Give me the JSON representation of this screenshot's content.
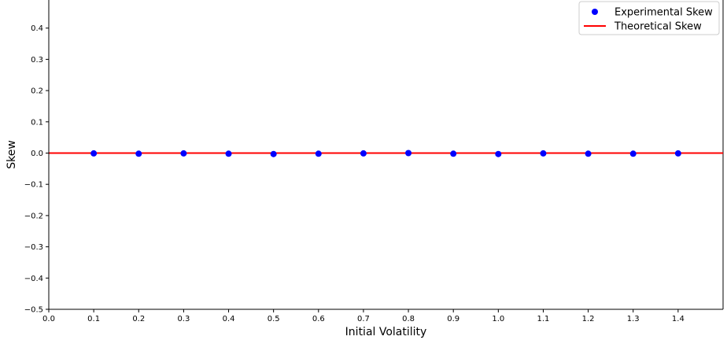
{
  "chart_data": {
    "type": "scatter",
    "title": "",
    "xlabel": "Initial Volatility",
    "ylabel": "Skew",
    "xlim": [
      0.0,
      1.5
    ],
    "ylim": [
      -0.5,
      0.5
    ],
    "xticks": [
      "0.0",
      "0.1",
      "0.2",
      "0.3",
      "0.4",
      "0.5",
      "0.6",
      "0.7",
      "0.8",
      "0.9",
      "1.0",
      "1.1",
      "1.2",
      "1.3",
      "1.4"
    ],
    "yticks": [
      "−0.5",
      "−0.4",
      "−0.3",
      "−0.2",
      "−0.1",
      "0.0",
      "0.1",
      "0.2",
      "0.3",
      "0.4"
    ],
    "ytick_values": [
      -0.5,
      -0.4,
      -0.3,
      -0.2,
      -0.1,
      0.0,
      0.1,
      0.2,
      0.3,
      0.4
    ],
    "grid": false,
    "legend_position": "top-right",
    "series": [
      {
        "name": "Experimental Skew",
        "kind": "scatter",
        "color": "#0000ff",
        "x": [
          0.1,
          0.2,
          0.3,
          0.4,
          0.5,
          0.6,
          0.7,
          0.8,
          0.9,
          1.0,
          1.1,
          1.2,
          1.3,
          1.4
        ],
        "y": [
          -0.001,
          -0.002,
          -0.001,
          -0.002,
          -0.003,
          -0.002,
          -0.001,
          0.0,
          -0.002,
          -0.003,
          -0.001,
          -0.002,
          -0.002,
          -0.001
        ]
      },
      {
        "name": "Theoretical Skew",
        "kind": "hline",
        "color": "#ff0000",
        "y": 0.0
      }
    ]
  }
}
